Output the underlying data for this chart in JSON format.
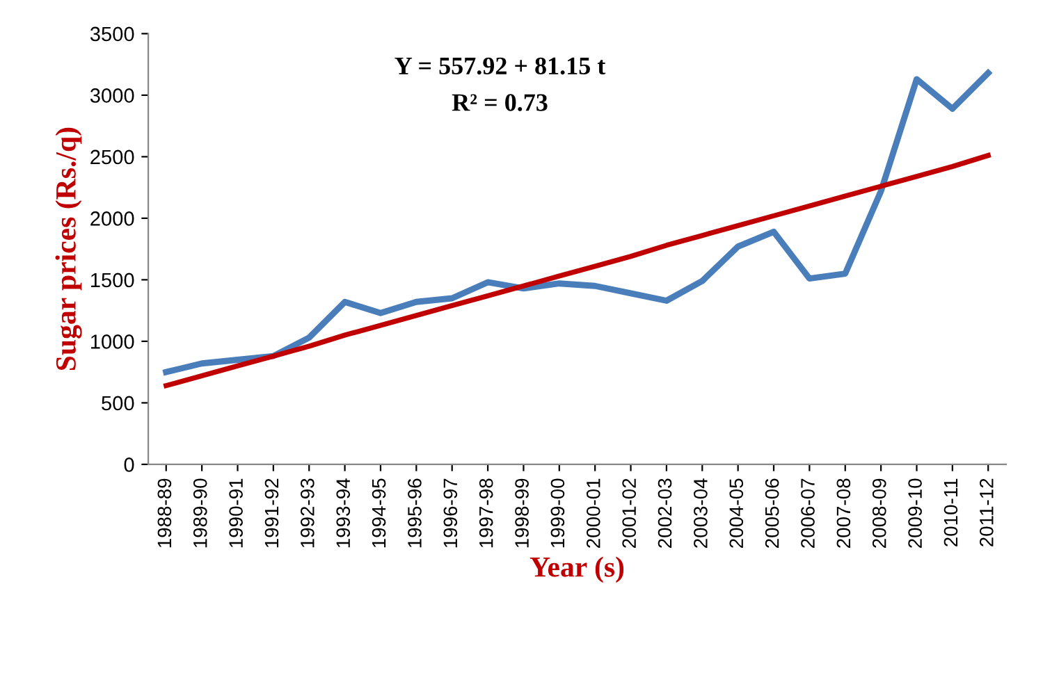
{
  "chart_data": {
    "type": "line",
    "categories": [
      "1988-89",
      "1989-90",
      "1990-91",
      "1991-92",
      "1992-93",
      "1993-94",
      "1994-95",
      "1995-96",
      "1996-97",
      "1997-98",
      "1998-99",
      "1999-00",
      "2000-01",
      "2001-02",
      "2002-03",
      "2003-04",
      "2004-05",
      "2005-06",
      "2006-07",
      "2007-08",
      "2008-09",
      "2009-10",
      "2010-11",
      "2011-12"
    ],
    "series": [
      {
        "color": "#4a7ebb",
        "values": [
          750,
          820,
          850,
          880,
          1030,
          1320,
          1230,
          1320,
          1350,
          1480,
          1430,
          1470,
          1450,
          1390,
          1330,
          1490,
          1770,
          1890,
          1510,
          1550,
          2220,
          3130,
          2890,
          3180
        ]
      },
      {
        "type": "line",
        "color": "#c00000",
        "values": [
          640,
          720,
          800,
          880,
          960,
          1050,
          1130,
          1210,
          1290,
          1370,
          1450,
          1530,
          1610,
          1690,
          1780,
          1860,
          1940,
          2020,
          2100,
          2180,
          2260,
          2340,
          2420,
          2510
        ]
      }
    ],
    "xlabel": "Year (s)",
    "ylabel": "Sugar prices (Rs./q)",
    "annotations": [
      "Y = 557.92 + 81.15 t",
      "R² = 0.73"
    ],
    "ylim": [
      0,
      3500
    ],
    "yticks": [
      0,
      500,
      1000,
      1500,
      2000,
      2500,
      3000,
      3500
    ],
    "grid": false,
    "legend": false,
    "marker": "none",
    "line_style": "solid"
  }
}
